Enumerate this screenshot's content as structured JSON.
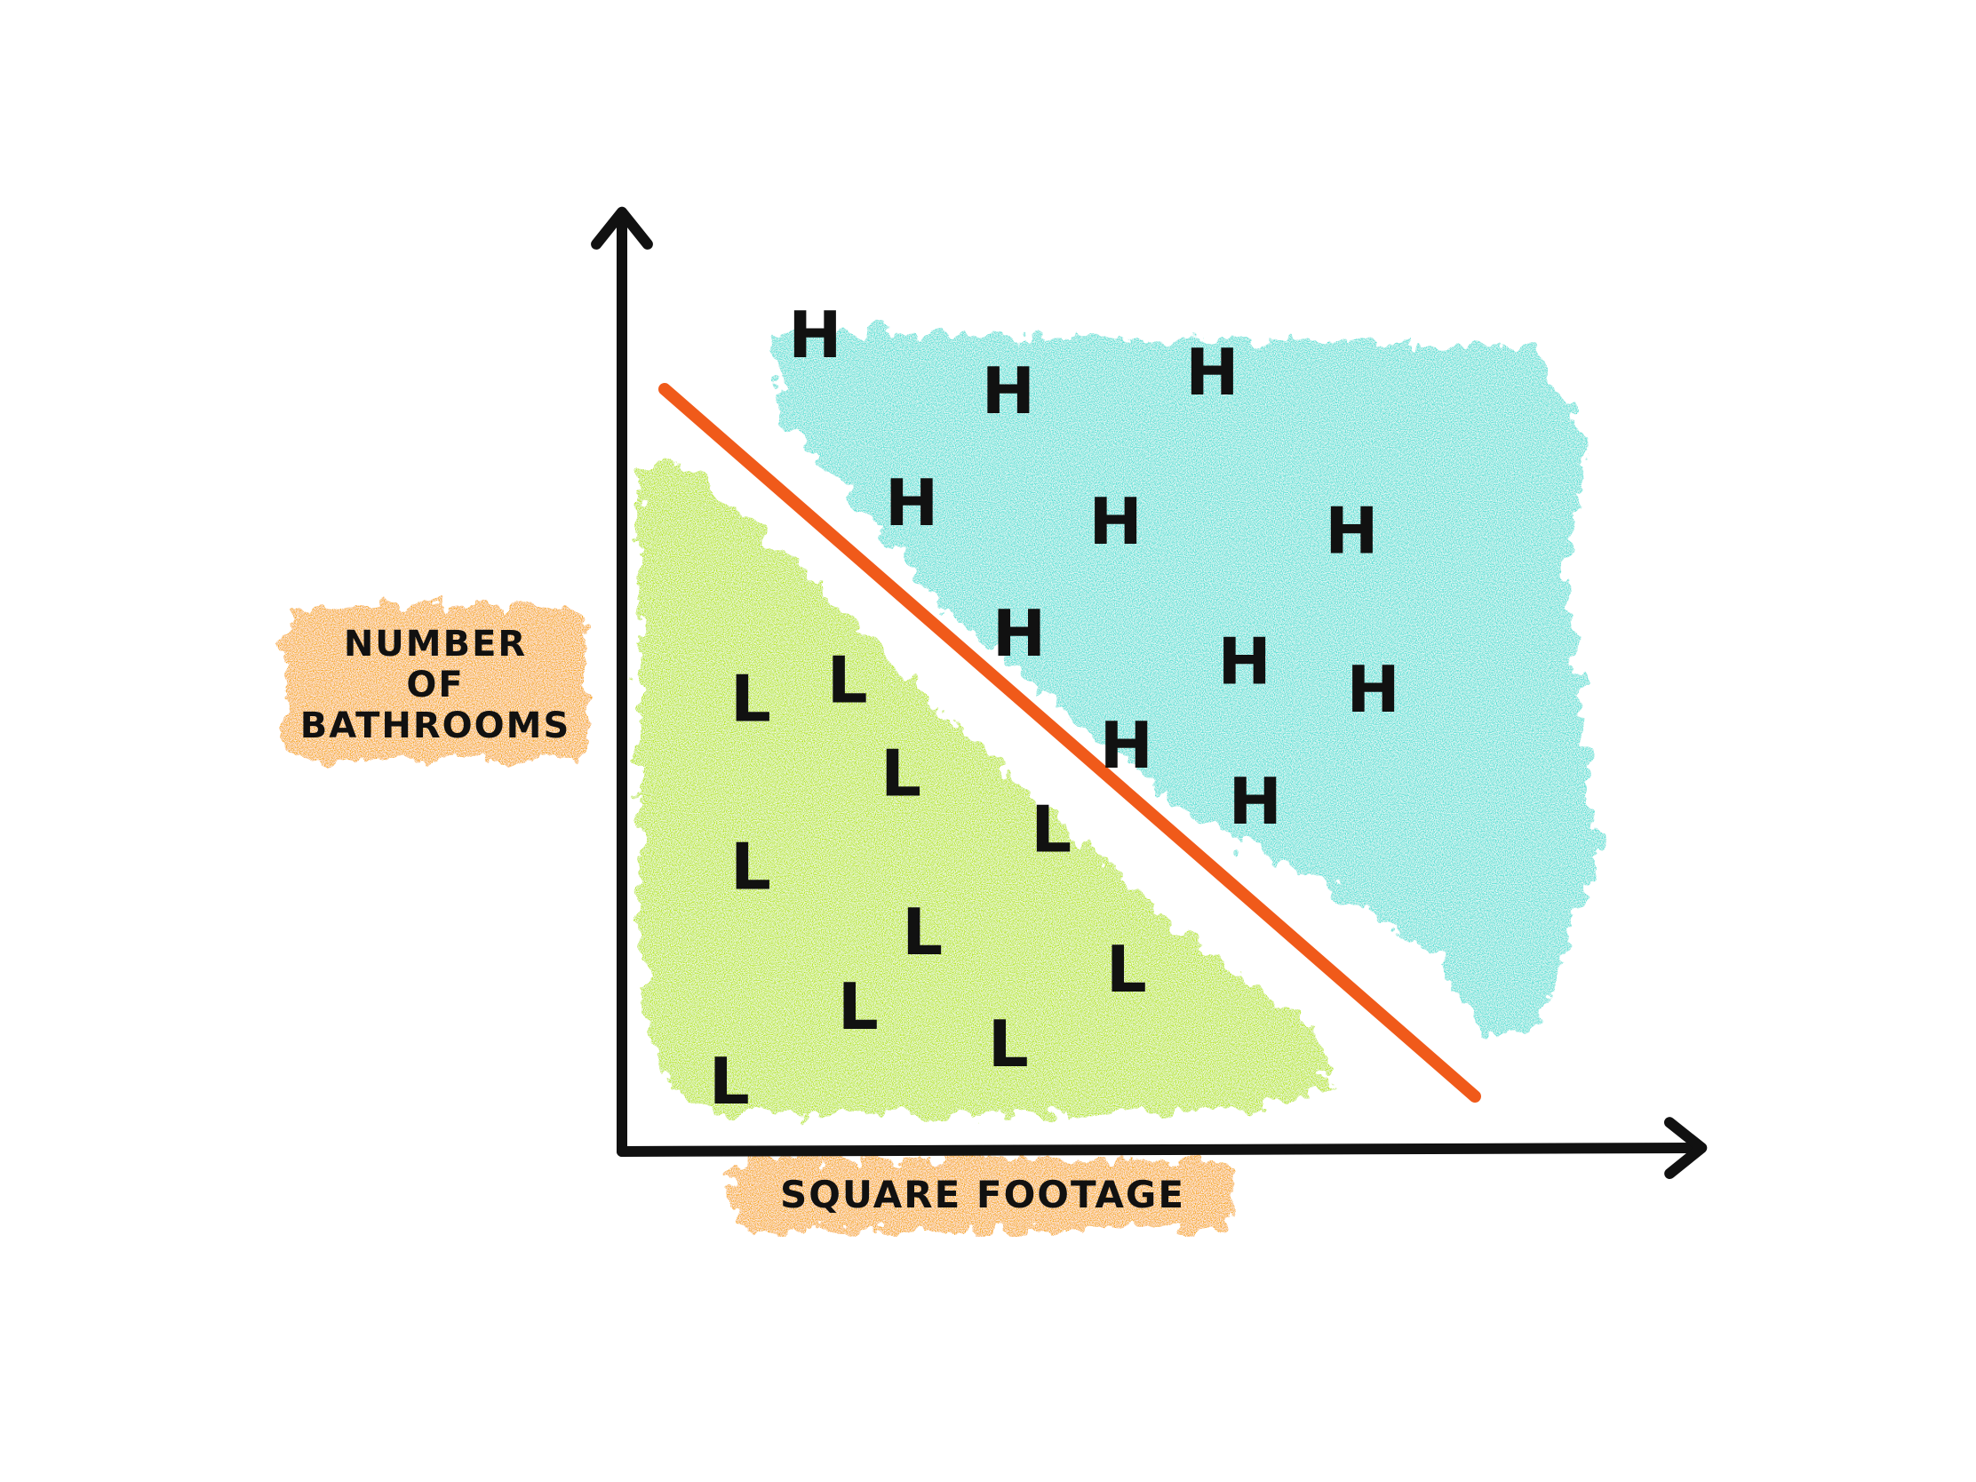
{
  "chart_data": {
    "type": "scatter",
    "x_axis_label": "SQUARE FOOTAGE",
    "y_axis_label_lines": [
      "NUMBER",
      "OF",
      "BATHROOMS"
    ],
    "grid": false,
    "decision_boundary": {
      "style": "straight line",
      "color": "#f05a1a"
    },
    "colors": {
      "high_region": "#57e0d6",
      "low_region": "#b8e619",
      "axis_label_highlight": "#f7a916",
      "axes": "#111111"
    },
    "classes": [
      {
        "marker": "H",
        "region": "above boundary",
        "points": [
          [
            0.18,
            0.87
          ],
          [
            0.36,
            0.81
          ],
          [
            0.55,
            0.83
          ],
          [
            0.27,
            0.69
          ],
          [
            0.46,
            0.67
          ],
          [
            0.68,
            0.66
          ],
          [
            0.37,
            0.55
          ],
          [
            0.58,
            0.52
          ],
          [
            0.7,
            0.49
          ],
          [
            0.47,
            0.43
          ],
          [
            0.59,
            0.37
          ]
        ]
      },
      {
        "marker": "L",
        "region": "below boundary",
        "points": [
          [
            0.12,
            0.48
          ],
          [
            0.21,
            0.5
          ],
          [
            0.26,
            0.4
          ],
          [
            0.4,
            0.34
          ],
          [
            0.12,
            0.3
          ],
          [
            0.28,
            0.23
          ],
          [
            0.47,
            0.19
          ],
          [
            0.1,
            0.07
          ],
          [
            0.22,
            0.15
          ],
          [
            0.36,
            0.11
          ]
        ]
      }
    ]
  }
}
